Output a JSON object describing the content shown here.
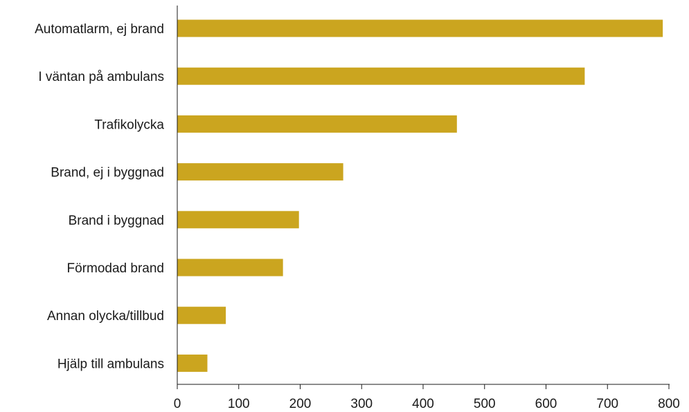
{
  "chart_data": {
    "type": "bar",
    "orientation": "horizontal",
    "title": "",
    "xlabel": "",
    "ylabel": "",
    "categories": [
      "Automatlarm, ej brand",
      "I väntan på ambulans",
      "Trafikolycka",
      "Brand, ej i byggnad",
      "Brand i byggnad",
      "Förmodad brand",
      "Annan olycka/tillbud",
      "Hjälp till ambulans"
    ],
    "values": [
      790,
      663,
      455,
      270,
      198,
      172,
      79,
      49
    ],
    "xlim": [
      0,
      800
    ],
    "xticks": [
      0,
      100,
      200,
      300,
      400,
      500,
      600,
      700,
      800
    ],
    "grid": false,
    "legend": "none",
    "bar_color": "#CBA51F"
  }
}
